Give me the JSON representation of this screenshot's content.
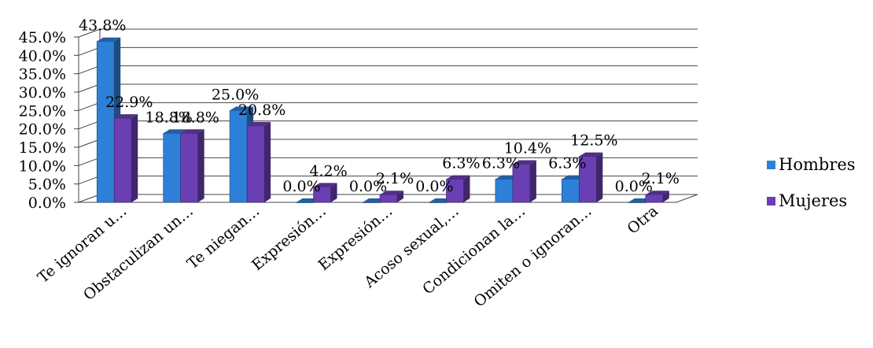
{
  "chart_data": {
    "type": "bar",
    "categories": [
      "Te ignoran u…",
      "Obstaculizan un…",
      "Te niegan…",
      "Expresión…",
      "Expresión…",
      "Acoso sexual,…",
      "Condicionan la…",
      "Omiten o ignoran…",
      "Otra"
    ],
    "series": [
      {
        "name": "Hombres",
        "values": [
          43.8,
          18.8,
          25.0,
          0.0,
          0.0,
          0.0,
          6.3,
          6.3,
          0.0
        ],
        "labels": [
          "43.8%",
          "18.8%",
          "25.0%",
          "0.0%",
          "0.0%",
          "0.0%",
          "6.3%",
          "6.3%",
          "0.0%"
        ]
      },
      {
        "name": "Mujeres",
        "values": [
          22.9,
          18.8,
          20.8,
          4.2,
          2.1,
          6.3,
          10.4,
          12.5,
          2.1
        ],
        "labels": [
          "22.9%",
          "18.8%",
          "20.8%",
          "4.2%",
          "2.1%",
          "6.3%",
          "10.4%",
          "12.5%",
          "2.1%"
        ]
      }
    ],
    "yticks": [
      "0.0%",
      "5.0%",
      "10.0%",
      "15.0%",
      "20.0%",
      "25.0%",
      "30.0%",
      "35.0%",
      "40.0%",
      "45.0%"
    ],
    "ylim": [
      0,
      45
    ],
    "grid": true,
    "legend_position": "right",
    "colors": {
      "Hombres": "#2e7fd8",
      "Mujeres": "#6a3fb3"
    }
  }
}
